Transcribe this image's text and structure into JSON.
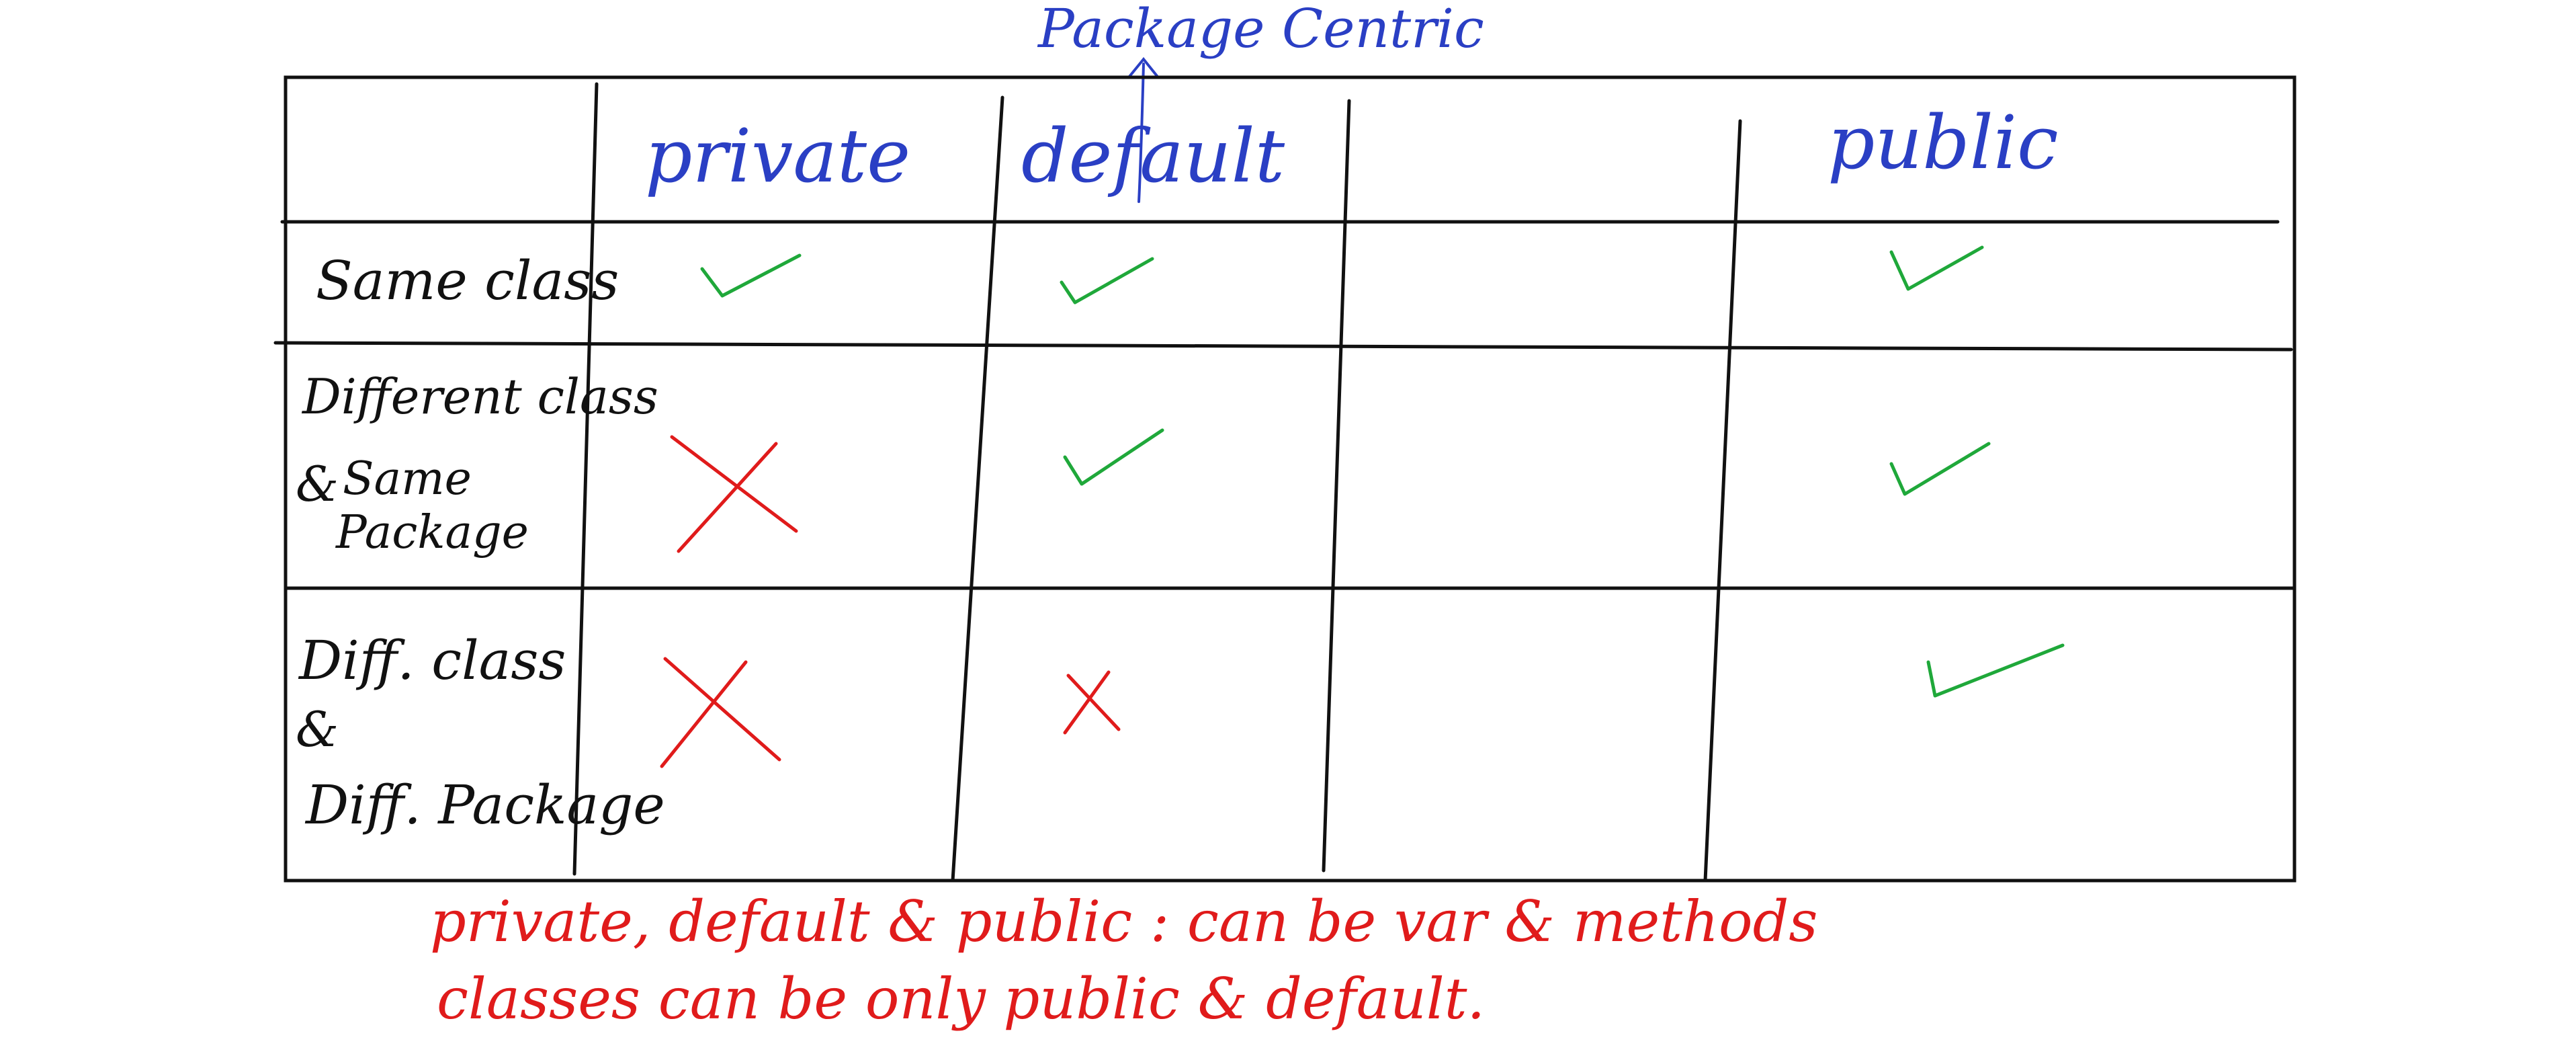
{
  "annotation": {
    "label": "Package Centric",
    "color": "#2a3fc4"
  },
  "table": {
    "columns": [
      "private",
      "default",
      "",
      "public"
    ],
    "rows": [
      {
        "label_lines": [
          "Same class"
        ],
        "cells": [
          "check",
          "check",
          "",
          "check"
        ]
      },
      {
        "label_lines": [
          "Different class",
          "&",
          "Same",
          "Package"
        ],
        "cells": [
          "cross",
          "check",
          "",
          "check"
        ]
      },
      {
        "label_lines": [
          "Diff. class",
          "&",
          "Diff. Package"
        ],
        "cells": [
          "cross",
          "cross",
          "",
          "check"
        ]
      }
    ]
  },
  "notes": [
    "private, default & public : can be var & methods",
    "classes can be only public & default."
  ],
  "colors": {
    "header_ink": "#2a3fc4",
    "label_ink": "#111111",
    "check": "#1fa83a",
    "cross": "#e01b1b",
    "notes_ink": "#e01b1b",
    "grid": "#111111"
  },
  "icons": {
    "check": "check-icon",
    "cross": "cross-icon",
    "arrow": "arrow-up-icon"
  }
}
